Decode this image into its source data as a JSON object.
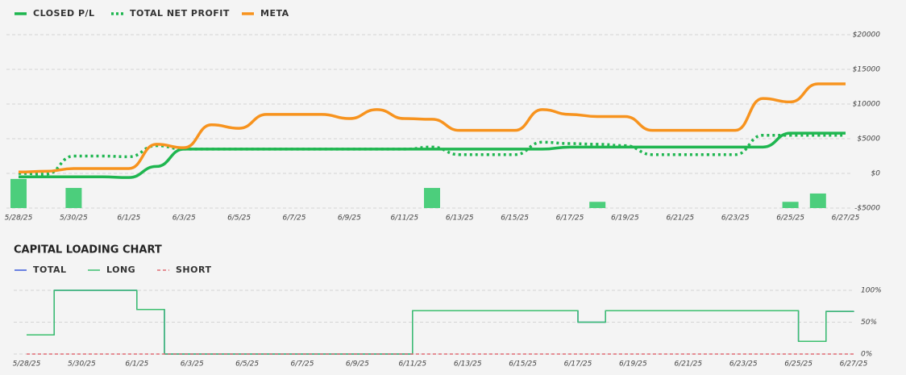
{
  "chart_data": [
    {
      "type": "line",
      "categories": [
        "5/28/25",
        null,
        "5/30/25",
        null,
        "6/1/25",
        null,
        "6/3/25",
        null,
        "6/5/25",
        null,
        "6/7/25",
        null,
        "6/9/25",
        null,
        "6/11/25",
        null,
        "6/13/25",
        null,
        "6/15/25",
        null,
        "6/17/25",
        null,
        "6/19/25",
        null,
        "6/21/25",
        null,
        "6/23/25",
        null,
        "6/25/25",
        null,
        "6/27/25"
      ],
      "series": [
        {
          "name": "CLOSED P/L",
          "color": "#1fb650",
          "style": "solid",
          "values": [
            -500,
            -500,
            -500,
            -500,
            -600,
            1000,
            3500,
            3500,
            3500,
            3500,
            3500,
            3500,
            3500,
            3500,
            3500,
            3500,
            3500,
            3500,
            3500,
            3500,
            3800,
            3800,
            3800,
            3800,
            3800,
            3800,
            3800,
            3800,
            5800,
            5800,
            5800
          ]
        },
        {
          "name": "TOTAL NET PROFIT",
          "color": "#1fb650",
          "style": "dotted",
          "values": [
            0,
            -100,
            2500,
            2500,
            2400,
            4000,
            3500,
            3500,
            3500,
            3500,
            3500,
            3500,
            3500,
            3500,
            3500,
            3800,
            2700,
            2700,
            2700,
            4500,
            4300,
            4200,
            4000,
            2700,
            2700,
            2700,
            2700,
            5500,
            5500,
            5500,
            5500
          ]
        },
        {
          "name": "META",
          "color": "#f7931e",
          "style": "solid",
          "values": [
            200,
            300,
            700,
            700,
            700,
            4200,
            3700,
            7000,
            6500,
            8500,
            8500,
            8500,
            7900,
            9200,
            7900,
            7800,
            6200,
            6200,
            6200,
            9200,
            8500,
            8200,
            8200,
            6200,
            6200,
            6200,
            6200,
            10800,
            10300,
            12900,
            12900
          ]
        }
      ],
      "bars": {
        "color": "#4cce7c",
        "values": [
          -800,
          null,
          -2100,
          null,
          null,
          null,
          null,
          null,
          null,
          null,
          null,
          null,
          null,
          null,
          null,
          -2100,
          null,
          null,
          null,
          null,
          null,
          -4100,
          null,
          null,
          null,
          null,
          null,
          null,
          -4100,
          -2900,
          null
        ]
      },
      "ylim": [
        -5000,
        20000
      ],
      "yticks": [
        {
          "value": -5000,
          "label": "-$5000"
        },
        {
          "value": 0,
          "label": "$0"
        },
        {
          "value": 5000,
          "label": "$5000"
        },
        {
          "value": 10000,
          "label": "$10000"
        },
        {
          "value": 15000,
          "label": "$15000"
        },
        {
          "value": 20000,
          "label": "$20000"
        }
      ],
      "grid": true
    },
    {
      "type": "step",
      "title": "CAPITAL LOADING CHART",
      "categories": [
        "5/28/25",
        null,
        "5/30/25",
        null,
        "6/1/25",
        null,
        "6/3/25",
        null,
        "6/5/25",
        null,
        "6/7/25",
        null,
        "6/9/25",
        null,
        "6/11/25",
        null,
        "6/13/25",
        null,
        "6/15/25",
        null,
        "6/17/25",
        null,
        "6/19/25",
        null,
        "6/21/25",
        null,
        "6/23/25",
        null,
        "6/25/25",
        null,
        "6/27/25"
      ],
      "series": [
        {
          "name": "TOTAL",
          "color": "#3b5bdb",
          "style": "solid",
          "values": [
            30,
            100,
            100,
            100,
            70,
            0,
            0,
            0,
            0,
            0,
            0,
            0,
            0,
            0,
            68,
            68,
            68,
            68,
            68,
            68,
            50,
            68,
            68,
            68,
            68,
            68,
            68,
            68,
            20,
            67,
            67
          ]
        },
        {
          "name": "LONG",
          "color": "#3cbf6e",
          "style": "solid",
          "values": [
            30,
            100,
            100,
            100,
            70,
            0,
            0,
            0,
            0,
            0,
            0,
            0,
            0,
            0,
            68,
            68,
            68,
            68,
            68,
            68,
            50,
            68,
            68,
            68,
            68,
            68,
            68,
            68,
            20,
            67,
            67
          ]
        },
        {
          "name": "SHORT",
          "color": "#e06c75",
          "style": "dashed",
          "values": [
            0,
            0,
            0,
            0,
            0,
            0,
            0,
            0,
            0,
            0,
            0,
            0,
            0,
            0,
            0,
            0,
            0,
            0,
            0,
            0,
            0,
            0,
            0,
            0,
            0,
            0,
            0,
            0,
            0,
            0,
            0
          ]
        }
      ],
      "ylim": [
        0,
        100
      ],
      "yticks": [
        {
          "value": 0,
          "label": "0%"
        },
        {
          "value": 50,
          "label": "50%"
        },
        {
          "value": 100,
          "label": "100%"
        }
      ],
      "grid": true
    }
  ]
}
